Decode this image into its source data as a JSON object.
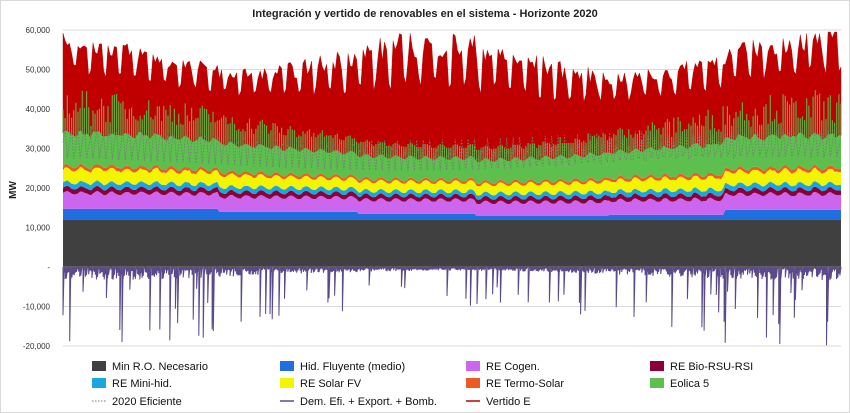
{
  "chart_data": {
    "type": "area",
    "title": "Integración y vertido de renovables en el sistema - Horizonte 2020",
    "ylabel": "MW",
    "xlabel": "",
    "ylim": [
      -20000,
      60000
    ],
    "yticks": [
      -20000,
      -10000,
      0,
      10000,
      20000,
      30000,
      40000,
      50000,
      60000
    ],
    "ytick_labels": [
      "-20,000",
      "-10,000",
      "-",
      "10,000",
      "20,000",
      "30,000",
      "40,000",
      "50,000",
      "60,000"
    ],
    "grid": "horizontal",
    "legend_position": "bottom",
    "x_points": 364,
    "series": [
      {
        "name": "Min R.O. Necesario",
        "kind": "stack",
        "color": "#404040",
        "base": 12000,
        "amp": 0,
        "weekly": 0
      },
      {
        "name": "Hid. Fluyente (medio)",
        "kind": "stack",
        "color": "#1f6fe0",
        "segments": [
          [
            0,
            0.2,
            2700
          ],
          [
            0.2,
            0.38,
            2000
          ],
          [
            0.38,
            0.53,
            1500
          ],
          [
            0.53,
            0.7,
            900
          ],
          [
            0.7,
            0.85,
            1200
          ],
          [
            0.85,
            1,
            2500
          ]
        ]
      },
      {
        "name": "RE Cogen.",
        "kind": "stack",
        "color": "#cc66ee",
        "base": 3000,
        "amp": 700,
        "weekly": 900
      },
      {
        "name": "RE Bio-RSU-RSI",
        "kind": "stack",
        "color": "#8b0038",
        "base": 1100,
        "amp": 150,
        "weekly": 100
      },
      {
        "name": "RE Mini-hid.",
        "kind": "stack",
        "color": "#1aa7e0",
        "base": 1100,
        "amp": 300,
        "weekly": 0
      },
      {
        "name": "RE Solar FV",
        "kind": "stack",
        "color": "#f4f400",
        "base": 2300,
        "amp": 1300,
        "weekly": 0
      },
      {
        "name": "RE Termo-Solar",
        "kind": "stack",
        "color": "#ee5a24",
        "base": 600,
        "amp": 300,
        "weekly": 0
      },
      {
        "name": "Eolica 5",
        "kind": "stack",
        "color": "#5cbf4e",
        "base": 5500,
        "amp": 3500,
        "weekly": 0
      },
      {
        "name": "2020 Eficiente",
        "kind": "line",
        "color": "#777777",
        "style": "dotted"
      },
      {
        "name": "Dem. Efi. + Export. + Bomb.",
        "kind": "line",
        "color": "#5b4a8b",
        "style": "solid"
      },
      {
        "name": "Vertido E",
        "kind": "area",
        "color": "#c00000",
        "peak_min": 40000,
        "peak_max": 60000
      }
    ]
  }
}
